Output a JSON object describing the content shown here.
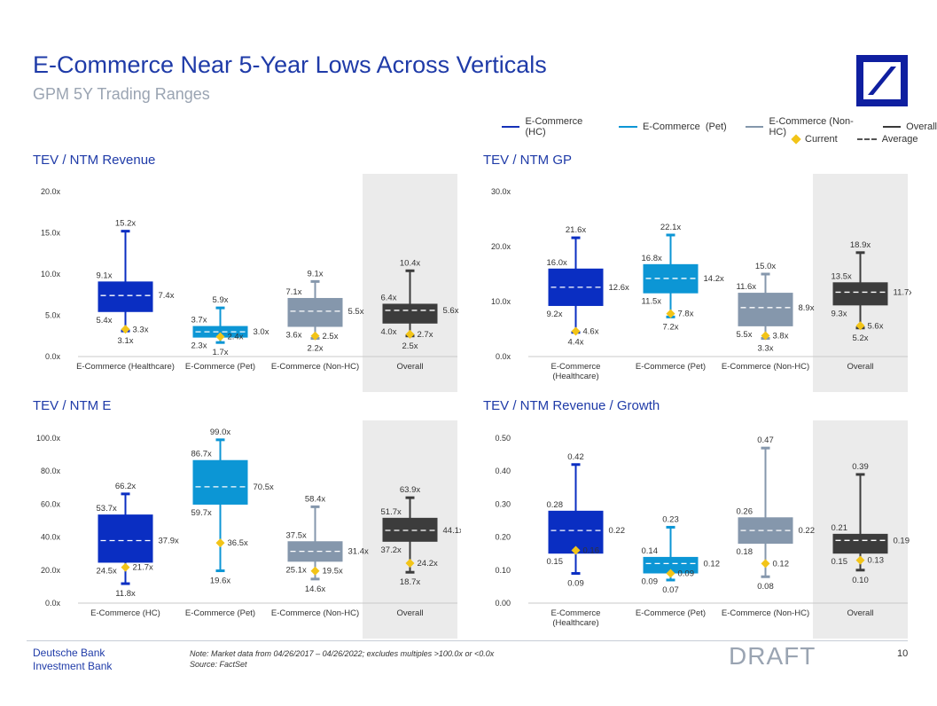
{
  "header": {
    "title": "E-Commerce Near 5-Year Lows Across Verticals",
    "subtitle": "GPM 5Y Trading Ranges"
  },
  "legend": {
    "items": [
      {
        "label": "E-Commerce (HC)",
        "color": "#1531b8"
      },
      {
        "label": "E-Commerce  (Pet)",
        "color": "#0c96d5"
      },
      {
        "label": "E-Commerce (Non-HC)",
        "color": "#8497ab"
      },
      {
        "label": "Overall",
        "color": "#3a3a3a"
      }
    ],
    "current_label": "Current",
    "average_label": "Average"
  },
  "colors": {
    "hc": "#0a2ec2",
    "pet": "#0c96d5",
    "nonhc": "#8597ac",
    "overall": "#3c3c3c",
    "current": "#f2c418",
    "title_blue": "#1f3ba8",
    "overall_bg": "#ebebeb"
  },
  "chart_data": [
    {
      "type": "box",
      "title": "TEV / NTM Revenue",
      "ylim": [
        0,
        20
      ],
      "yticks": [
        "0.0x",
        "5.0x",
        "10.0x",
        "15.0x",
        "20.0x"
      ],
      "categories": [
        "E-Commerce (Healthcare)",
        "E-Commerce (Pet)",
        "E-Commerce (Non-HC)",
        "Overall"
      ],
      "boxes": [
        {
          "max": 15.2,
          "q3": 9.1,
          "avg": 7.4,
          "q1": 5.4,
          "min": 3.1,
          "current": 3.3,
          "labels": {
            "max": "15.2x",
            "q3": "9.1x",
            "avg": "7.4x",
            "q1": "5.4x",
            "min": "3.1x",
            "current": "3.3x"
          }
        },
        {
          "max": 5.9,
          "q3": 3.7,
          "avg": 3.0,
          "q1": 2.3,
          "min": 1.7,
          "current": 2.4,
          "labels": {
            "max": "5.9x",
            "q3": "3.7x",
            "avg": "3.0x",
            "q1": "2.3x",
            "min": "1.7x",
            "current": "2.4x"
          }
        },
        {
          "max": 9.1,
          "q3": 7.1,
          "avg": 5.5,
          "q1": 3.6,
          "min": 2.2,
          "current": 2.5,
          "labels": {
            "max": "9.1x",
            "q3": "7.1x",
            "avg": "5.5x",
            "q1": "3.6x",
            "min": "2.2x",
            "current": "2.5x"
          }
        },
        {
          "max": 10.4,
          "q3": 6.4,
          "avg": 5.6,
          "q1": 4.0,
          "min": 2.5,
          "current": 2.7,
          "labels": {
            "max": "10.4x",
            "q3": "6.4x",
            "avg": "5.6x",
            "q1": "4.0x",
            "min": "2.5x",
            "current": "2.7x"
          }
        }
      ]
    },
    {
      "type": "box",
      "title": "TEV / NTM GP",
      "ylim": [
        0,
        30
      ],
      "yticks": [
        "0.0x",
        "10.0x",
        "20.0x",
        "30.0x"
      ],
      "categories": [
        "E-Commerce\n(Healthcare)",
        "E-Commerce (Pet)",
        "E-Commerce (Non-HC)",
        "Overall"
      ],
      "boxes": [
        {
          "max": 21.6,
          "q3": 16.0,
          "avg": 12.6,
          "q1": 9.2,
          "min": 4.4,
          "current": 4.6,
          "labels": {
            "max": "21.6x",
            "q3": "16.0x",
            "avg": "12.6x",
            "q1": "9.2x",
            "min": "4.4x",
            "current": "4.6x"
          }
        },
        {
          "max": 22.1,
          "q3": 16.8,
          "avg": 14.2,
          "q1": 11.5,
          "min": 7.2,
          "current": 7.8,
          "labels": {
            "max": "22.1x",
            "q3": "16.8x",
            "avg": "14.2x",
            "q1": "11.5x",
            "min": "7.2x",
            "current": "7.8x"
          }
        },
        {
          "max": 15.0,
          "q3": 11.6,
          "avg": 8.9,
          "q1": 5.5,
          "min": 3.3,
          "current": 3.8,
          "labels": {
            "max": "15.0x",
            "q3": "11.6x",
            "avg": "8.9x",
            "q1": "5.5x",
            "min": "3.3x",
            "current": "3.8x"
          }
        },
        {
          "max": 18.9,
          "q3": 13.5,
          "avg": 11.7,
          "q1": 9.3,
          "min": 5.2,
          "current": 5.6,
          "labels": {
            "max": "18.9x",
            "q3": "13.5x",
            "avg": "11.7x",
            "q1": "9.3x",
            "min": "5.2x",
            "current": "5.6x"
          }
        }
      ]
    },
    {
      "type": "box",
      "title": "TEV / NTM E",
      "ylim": [
        0,
        100
      ],
      "yticks": [
        "0.0x",
        "20.0x",
        "40.0x",
        "60.0x",
        "80.0x",
        "100.0x"
      ],
      "categories": [
        "E-Commerce (HC)",
        "E-Commerce (Pet)",
        "E-Commerce (Non-HC)",
        "Overall"
      ],
      "boxes": [
        {
          "max": 66.2,
          "q3": 53.7,
          "avg": 37.9,
          "q1": 24.5,
          "min": 11.8,
          "current": 21.7,
          "labels": {
            "max": "66.2x",
            "q3": "53.7x",
            "avg": "37.9x",
            "q1": "24.5x",
            "min": "11.8x",
            "current": "21.7x"
          }
        },
        {
          "max": 99.0,
          "q3": 86.7,
          "avg": 70.5,
          "q1": 59.7,
          "min": 19.6,
          "current": 36.5,
          "labels": {
            "max": "99.0x",
            "q3": "86.7x",
            "avg": "70.5x",
            "q1": "59.7x",
            "min": "19.6x",
            "current": "36.5x"
          }
        },
        {
          "max": 58.4,
          "q3": 37.5,
          "avg": 31.4,
          "q1": 25.1,
          "min": 14.6,
          "current": 19.5,
          "labels": {
            "max": "58.4x",
            "q3": "37.5x",
            "avg": "31.4x",
            "q1": "25.1x",
            "min": "14.6x",
            "current": "19.5x"
          }
        },
        {
          "max": 63.9,
          "q3": 51.7,
          "avg": 44.1,
          "q1": 37.2,
          "min": 18.7,
          "current": 24.2,
          "labels": {
            "max": "63.9x",
            "q3": "51.7x",
            "avg": "44.1x",
            "q1": "37.2x",
            "min": "18.7x",
            "current": "24.2x"
          }
        }
      ]
    },
    {
      "type": "box",
      "title": "TEV / NTM Revenue / Growth",
      "ylim": [
        0,
        0.5
      ],
      "yticks": [
        "0.00",
        "0.10",
        "0.20",
        "0.30",
        "0.40",
        "0.50"
      ],
      "categories": [
        "E-Commerce\n(Healthcare)",
        "E-Commerce (Pet)",
        "E-Commerce (Non-HC)",
        "Overall"
      ],
      "boxes": [
        {
          "max": 0.42,
          "q3": 0.28,
          "avg": 0.22,
          "q1": 0.15,
          "min": 0.09,
          "current": 0.16,
          "labels": {
            "max": "0.42",
            "q3": "0.28",
            "avg": "0.22",
            "q1": "0.15",
            "min": "0.09",
            "current": "0.16"
          }
        },
        {
          "max": 0.23,
          "q3": 0.14,
          "avg": 0.12,
          "q1": 0.09,
          "min": 0.07,
          "current": 0.09,
          "labels": {
            "max": "0.23",
            "q3": "0.14",
            "avg": "0.12",
            "q1": "0.09",
            "min": "0.07",
            "current": "0.09"
          }
        },
        {
          "max": 0.47,
          "q3": 0.26,
          "avg": 0.22,
          "q1": 0.18,
          "min": 0.08,
          "current": 0.12,
          "labels": {
            "max": "0.47",
            "q3": "0.26",
            "avg": "0.22",
            "q1": "0.18",
            "min": "0.08",
            "current": "0.12"
          }
        },
        {
          "max": 0.39,
          "q3": 0.21,
          "avg": 0.19,
          "q1": 0.15,
          "min": 0.1,
          "current": 0.13,
          "labels": {
            "max": "0.39",
            "q3": "0.21",
            "avg": "0.19",
            "q1": "0.15",
            "min": "0.10",
            "current": "0.13"
          }
        }
      ]
    }
  ],
  "footer": {
    "brand_line1": "Deutsche Bank",
    "brand_line2": "Investment Bank",
    "note": "Note: Market data from 04/26/2017 – 04/26/2022; excludes multiples >100.0x or <0.0x",
    "source": "Source: FactSet",
    "draft": "DRAFT",
    "page": "10"
  }
}
